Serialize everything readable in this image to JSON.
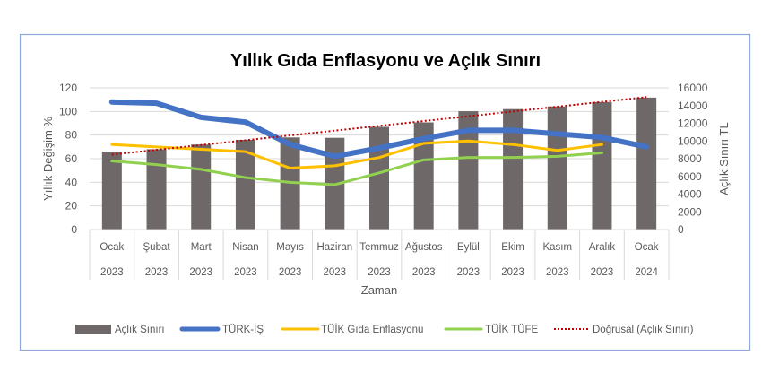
{
  "chart_data": {
    "type": "bar+line",
    "title": "Yıllık Gıda Enflasyonu ve Açlık Sınırı",
    "xlabel": "Zaman",
    "ylabel": "Yıllık Değişim %",
    "y2label": "Açlık Sınırı TL",
    "ylim": [
      0,
      120
    ],
    "y2lim": [
      0,
      16000
    ],
    "yticks": [
      0,
      20,
      40,
      60,
      80,
      100,
      120
    ],
    "y2ticks": [
      0,
      2000,
      4000,
      6000,
      8000,
      10000,
      12000,
      14000,
      16000
    ],
    "grid": true,
    "legend_position": "bottom",
    "categories": [
      {
        "month": "Ocak",
        "year": "2023"
      },
      {
        "month": "Şubat",
        "year": "2023"
      },
      {
        "month": "Mart",
        "year": "2023"
      },
      {
        "month": "Nisan",
        "year": "2023"
      },
      {
        "month": "Mayıs",
        "year": "2023"
      },
      {
        "month": "Haziran",
        "year": "2023"
      },
      {
        "month": "Temmuz",
        "year": "2023"
      },
      {
        "month": "Ağustos",
        "year": "2023"
      },
      {
        "month": "Eylül",
        "year": "2023"
      },
      {
        "month": "Ekim",
        "year": "2023"
      },
      {
        "month": "Kasım",
        "year": "2023"
      },
      {
        "month": "Aralık",
        "year": "2023"
      },
      {
        "month": "Ocak",
        "year": "2024"
      }
    ],
    "series": [
      {
        "name": "Açlık Sınırı",
        "kind": "bar",
        "axis": "right",
        "color": "#6f6868",
        "values": [
          8800,
          9070,
          9600,
          10130,
          10400,
          10360,
          11600,
          12100,
          13360,
          13600,
          13900,
          14400,
          14900
        ]
      },
      {
        "name": "TÜRK-İŞ",
        "kind": "line",
        "axis": "left",
        "color": "#4472c4",
        "values": [
          108,
          107,
          95,
          91,
          72,
          62,
          69,
          77,
          84,
          84,
          81,
          78,
          70
        ]
      },
      {
        "name": "TÜİK Gıda Enflasyonu",
        "kind": "line",
        "axis": "left",
        "color": "#ffc000",
        "values": [
          72,
          70,
          68,
          66,
          52,
          54,
          61,
          73,
          75,
          72,
          67,
          72,
          null
        ]
      },
      {
        "name": "TÜİK TÜFE",
        "kind": "line",
        "axis": "left",
        "color": "#92d050",
        "values": [
          58,
          55,
          51,
          44,
          40,
          38,
          48,
          59,
          61,
          61,
          62,
          65,
          null
        ]
      },
      {
        "name": "Doğrusal (Açlık Sınırı)",
        "kind": "trendline",
        "axis": "right",
        "color": "#c00000",
        "of": "Açlık Sınırı"
      }
    ]
  }
}
